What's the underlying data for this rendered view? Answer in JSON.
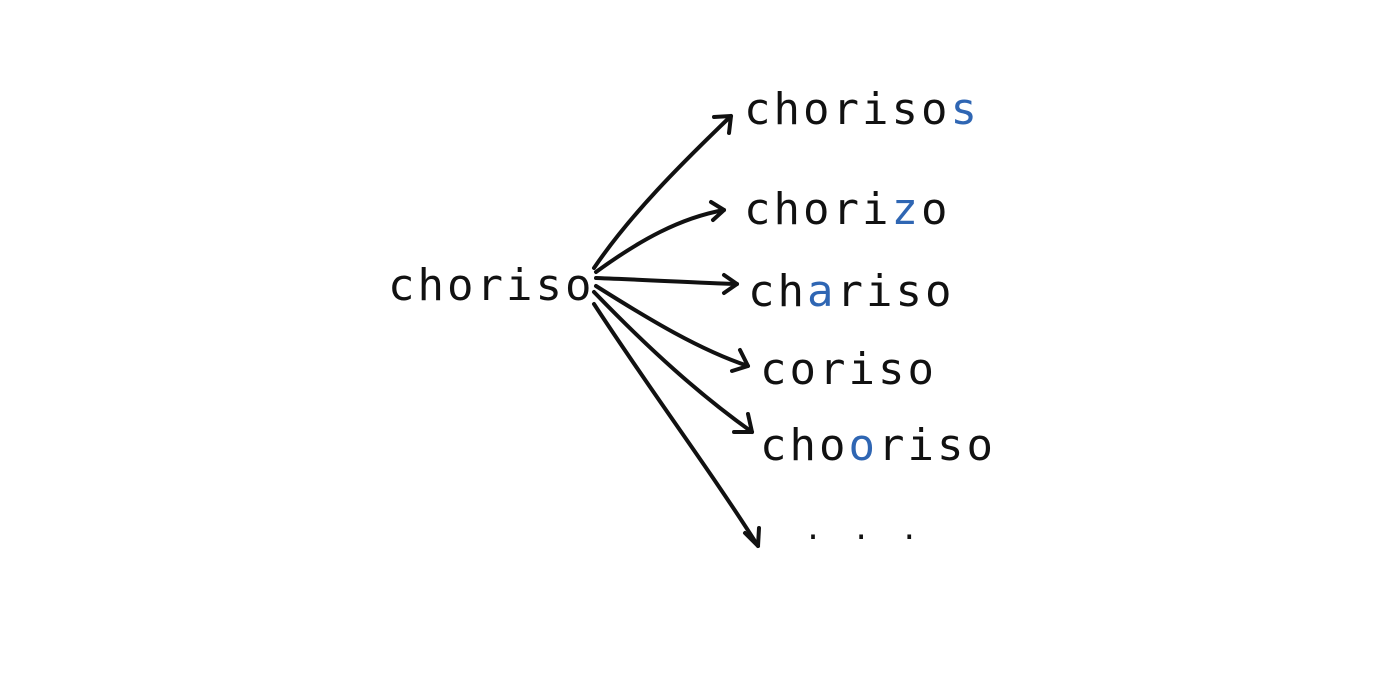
{
  "diagram": {
    "source": "choriso",
    "edits": [
      {
        "before": "choriso",
        "changed": "s",
        "after": ""
      },
      {
        "before": "chori",
        "changed": "z",
        "after": "o"
      },
      {
        "before": "ch",
        "changed": "a",
        "after": "riso"
      },
      {
        "before": "coriso",
        "changed": "",
        "after": ""
      },
      {
        "before": "cho",
        "changed": "o",
        "after": "riso"
      }
    ],
    "ellipsis": ". . .",
    "colors": {
      "text": "#111111",
      "highlight": "#2f66b3",
      "background": "#ffffff"
    }
  }
}
